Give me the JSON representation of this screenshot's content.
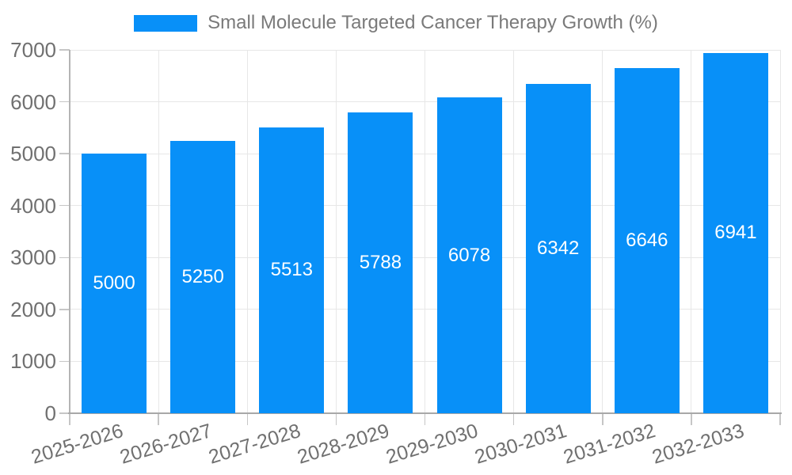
{
  "legend": {
    "label": "Small Molecule Targeted Cancer Therapy Growth (%)"
  },
  "chart_data": {
    "type": "bar",
    "title": "Small Molecule Targeted Cancer Therapy Growth (%)",
    "categories": [
      "2025-2026",
      "2026-2027",
      "2027-2028",
      "2028-2029",
      "2029-2030",
      "2030-2031",
      "2031-2032",
      "2032-2033"
    ],
    "values": [
      5000,
      5250,
      5513,
      5788,
      6078,
      6342,
      6646,
      6941
    ],
    "xlabel": "",
    "ylabel": "",
    "ylim": [
      0,
      7000
    ],
    "ytick_step": 1000,
    "yticks": [
      0,
      1000,
      2000,
      3000,
      4000,
      5000,
      6000,
      7000
    ],
    "grid": true,
    "legend_position": "top-center",
    "x_label_rotation_deg": -17,
    "bar_color": "#0890F8",
    "bar_label_color": "#FFFFFF",
    "axis_label_color": "#707070",
    "legend_text_color": "#7A7A7A",
    "grid_color": "#E7E7E7",
    "tick_color": "#C6C6C6",
    "x_axis_line_color": "#A8A8A8",
    "y_axis_line_color": "#B4B4B4"
  }
}
